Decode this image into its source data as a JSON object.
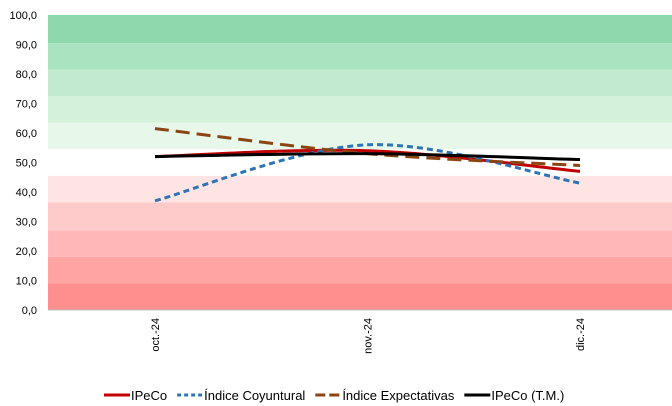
{
  "chart_data": {
    "type": "line",
    "categories": [
      "oct.-24",
      "nov.-24",
      "dic.-24"
    ],
    "ylim": [
      0,
      100
    ],
    "ytick_labels": [
      "0,0",
      "10,0",
      "20,0",
      "30,0",
      "40,0",
      "50,0",
      "60,0",
      "70,0",
      "80,0",
      "90,0",
      "100,0"
    ],
    "grid": false,
    "legend_position": "bottom",
    "background_bands": [
      {
        "from": 0,
        "to": 9,
        "color": "#ff8f8f"
      },
      {
        "from": 9,
        "to": 18,
        "color": "#ffa3a3"
      },
      {
        "from": 18,
        "to": 27,
        "color": "#ffb7b7"
      },
      {
        "from": 27,
        "to": 36.5,
        "color": "#ffcaca"
      },
      {
        "from": 36.5,
        "to": 45.5,
        "color": "#ffe4e4"
      },
      {
        "from": 45.5,
        "to": 54.5,
        "color": "#ffffff"
      },
      {
        "from": 54.5,
        "to": 63.5,
        "color": "#e7f7ea"
      },
      {
        "from": 63.5,
        "to": 72.5,
        "color": "#d4f1dc"
      },
      {
        "from": 72.5,
        "to": 81.5,
        "color": "#c1ead0"
      },
      {
        "from": 81.5,
        "to": 90.5,
        "color": "#aae3c0"
      },
      {
        "from": 90.5,
        "to": 100,
        "color": "#8fd8ad"
      }
    ],
    "series": [
      {
        "name": "IPeCo",
        "values": [
          52.0,
          54.0,
          47.0
        ],
        "color": "#c00000",
        "dash": "solid"
      },
      {
        "name": "Índice Coyuntural",
        "values": [
          37.0,
          56.0,
          43.0
        ],
        "color": "#2e75b6",
        "dash": "dotted"
      },
      {
        "name": "Índice Expectativas",
        "values": [
          61.5,
          53.0,
          49.0
        ],
        "color": "#8b4513",
        "dash": "dashed"
      },
      {
        "name": "IPeCo (T.M.)",
        "values": [
          52.0,
          53.0,
          51.0
        ],
        "color": "#000000",
        "dash": "solid"
      }
    ]
  }
}
